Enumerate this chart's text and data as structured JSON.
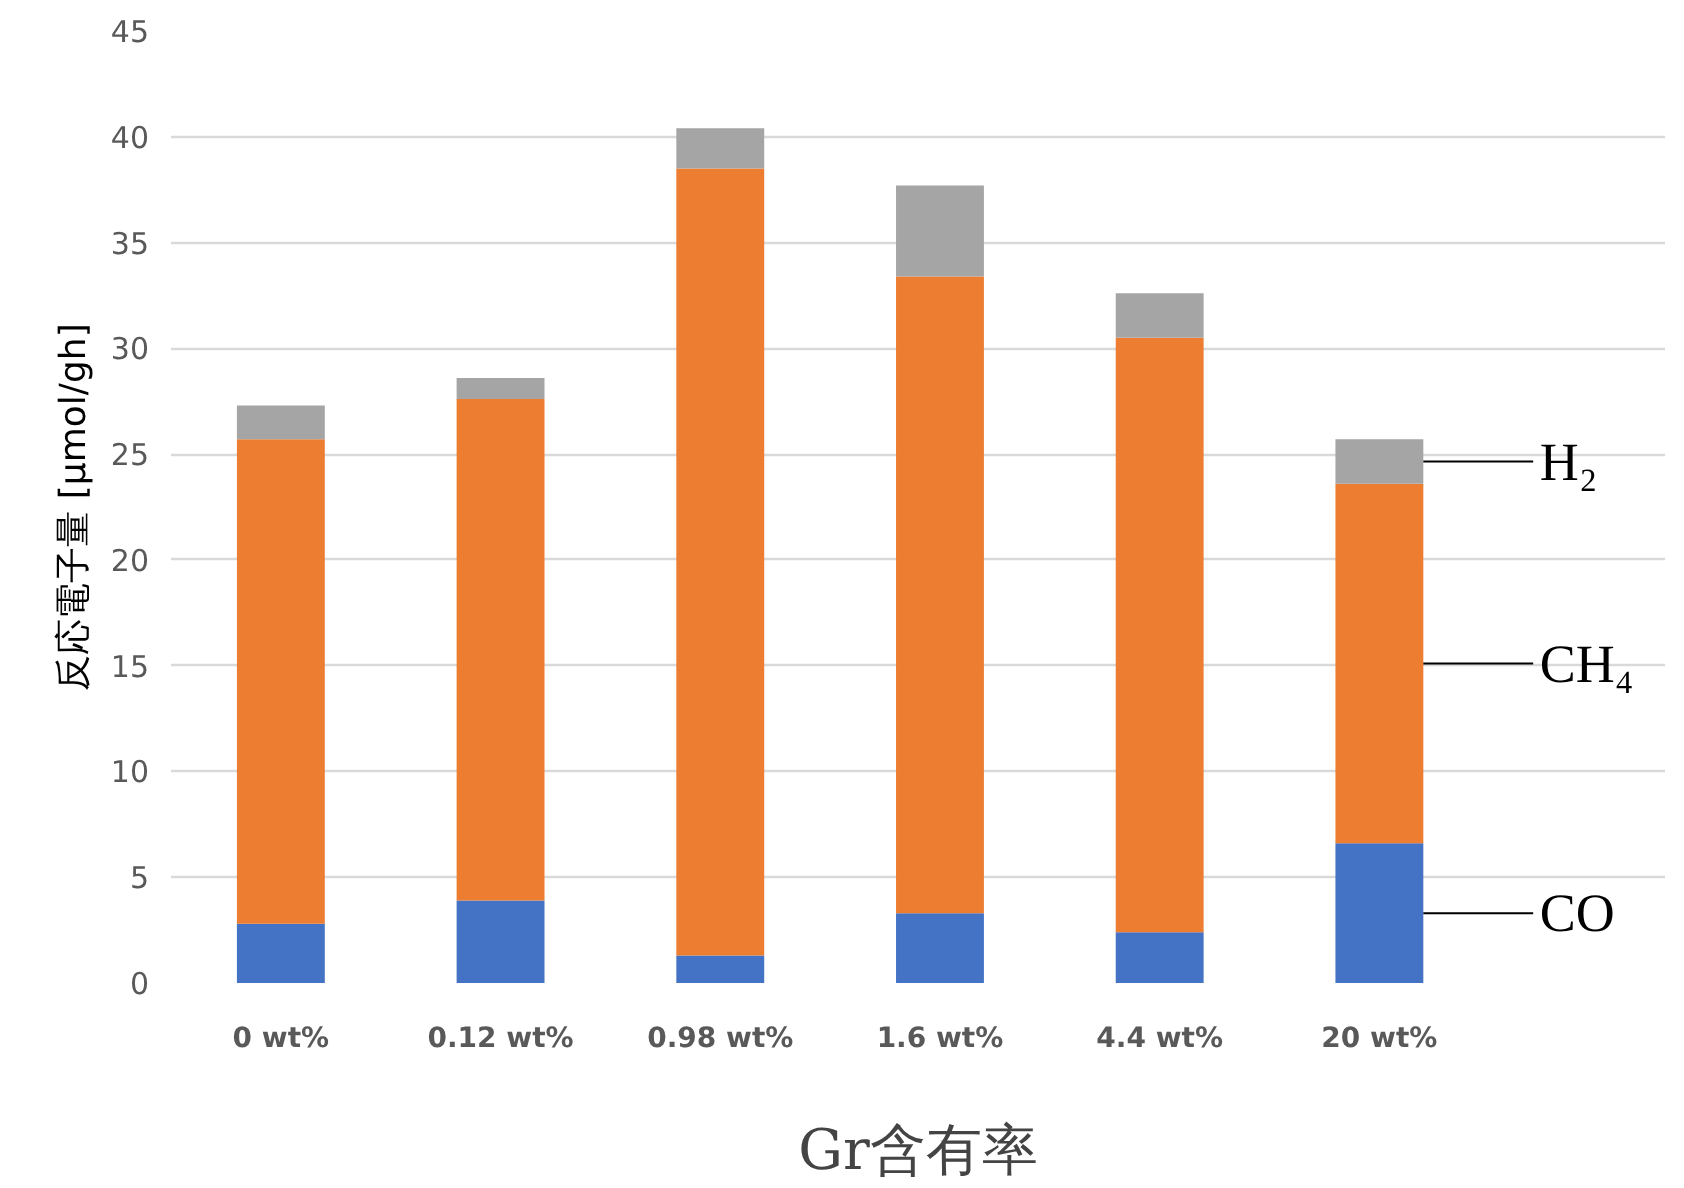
{
  "chart_data": {
    "type": "bar",
    "stacked": true,
    "xlabel": "Gr含有率",
    "ylabel": "反応電子量 [μmol/gh]",
    "categories": [
      "0 wt%",
      "0.12 wt%",
      "0.98 wt%",
      "1.6 wt%",
      "4.4 wt%",
      "20 wt%"
    ],
    "series": [
      {
        "name": "CO",
        "color": "#4472c4",
        "values": [
          2.8,
          3.9,
          1.3,
          3.3,
          2.4,
          6.6
        ]
      },
      {
        "name": "CH₄",
        "color": "#ed7d31",
        "values": [
          22.9,
          23.7,
          37.2,
          30.1,
          28.1,
          17.0
        ]
      },
      {
        "name": "H₂",
        "color": "#a5a5a5",
        "values": [
          1.6,
          1.0,
          1.9,
          4.3,
          2.1,
          2.1
        ]
      }
    ],
    "ylim": [
      0,
      45
    ],
    "yticks": [
      0,
      5,
      10,
      15,
      20,
      25,
      30,
      35,
      40,
      45
    ],
    "grid": "y",
    "legend": false
  }
}
